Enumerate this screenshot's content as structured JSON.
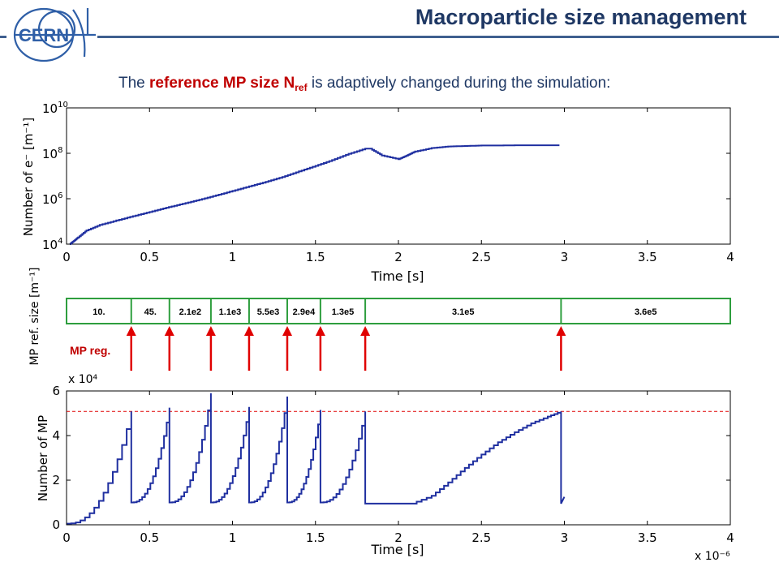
{
  "header": {
    "title": "Macroparticle size management",
    "subtitle_pre": "The ",
    "subtitle_hl": "reference MP size N",
    "subtitle_sub": "ref",
    "subtitle_post": " is adaptively changed during the simulation:",
    "logo_text": "CERN",
    "colors": {
      "title": "#1f3864",
      "rule": "#3f5f8f",
      "highlight": "#c00000"
    }
  },
  "chart_data": [
    {
      "type": "line",
      "xlabel": "Time [s]",
      "ylabel": "Number of e⁻ [m⁻¹]",
      "xlim": [
        0,
        4
      ],
      "ylim": [
        10000,
        10000000000
      ],
      "yscale": "log",
      "x_ticks": [
        "0",
        "0.5",
        "1",
        "1.5",
        "2",
        "2.5",
        "3",
        "3.5",
        "4"
      ],
      "y_ticks": [
        {
          "base": "10",
          "exp": "4",
          "value": 10000
        },
        {
          "base": "10",
          "exp": "6",
          "value": 1000000
        },
        {
          "base": "10",
          "exp": "8",
          "value": 100000000
        },
        {
          "base": "10",
          "exp": "10",
          "value": 10000000000
        }
      ],
      "grid": false,
      "color": "#1f2fa0",
      "points": [
        [
          0.02,
          10000
        ],
        [
          0.04,
          13000
        ],
        [
          0.07,
          20000
        ],
        [
          0.12,
          40000
        ],
        [
          0.2,
          70000
        ],
        [
          0.3,
          110000
        ],
        [
          0.4,
          170000
        ],
        [
          0.5,
          260000
        ],
        [
          0.6,
          400000
        ],
        [
          0.7,
          600000
        ],
        [
          0.8,
          900000
        ],
        [
          0.9,
          1400000
        ],
        [
          1.0,
          2200000
        ],
        [
          1.1,
          3500000
        ],
        [
          1.2,
          5500000
        ],
        [
          1.3,
          9000000
        ],
        [
          1.4,
          16000000
        ],
        [
          1.5,
          28000000
        ],
        [
          1.6,
          50000000
        ],
        [
          1.7,
          95000000
        ],
        [
          1.8,
          160000000
        ],
        [
          1.83,
          160000000
        ],
        [
          1.9,
          80000000
        ],
        [
          2.0,
          55000000
        ],
        [
          2.05,
          80000000
        ],
        [
          2.1,
          120000000
        ],
        [
          2.2,
          170000000
        ],
        [
          2.3,
          200000000
        ],
        [
          2.4,
          210000000
        ],
        [
          2.5,
          220000000
        ],
        [
          2.6,
          220000000
        ],
        [
          2.7,
          225000000
        ],
        [
          2.8,
          225000000
        ],
        [
          2.9,
          225000000
        ],
        [
          2.97,
          225000000
        ]
      ]
    },
    {
      "type": "table",
      "title": "MP ref. size [m⁻¹]",
      "xlim": [
        0,
        4
      ],
      "boundaries": [
        0.39,
        0.62,
        0.87,
        1.1,
        1.33,
        1.53,
        1.8,
        2.98
      ],
      "segments": [
        "10.",
        "45.",
        "2.1e2",
        "1.1e3",
        "5.5e3",
        "2.9e4",
        "1.3e5",
        "3.1e5",
        "3.6e5"
      ],
      "arrow_label": "MP reg.",
      "border_color": "#2e9e3e",
      "arrow_color": "#e00000"
    },
    {
      "type": "line",
      "xlabel": "Time [s]",
      "ylabel": "Number of MP",
      "xlim": [
        0,
        4
      ],
      "ylim": [
        0,
        6
      ],
      "y_multiplier": "x 10⁴",
      "x_multiplier": "x 10⁻⁶",
      "x_ticks": [
        "0",
        "0.5",
        "1",
        "1.5",
        "2",
        "2.5",
        "3",
        "3.5",
        "4"
      ],
      "y_ticks": [
        "0",
        "2",
        "4",
        "6"
      ],
      "grid": false,
      "color": "#1f2fa0",
      "reference_line": {
        "y": 5.08,
        "color": "#e00000",
        "style": "dashed"
      },
      "cycles": [
        {
          "start": 0.0,
          "end": 0.39,
          "y0": 0.05,
          "y1": 5.08
        },
        {
          "start": 0.39,
          "end": 0.62,
          "y0": 1.0,
          "y1": 5.25
        },
        {
          "start": 0.62,
          "end": 0.87,
          "y0": 1.0,
          "y1": 5.9
        },
        {
          "start": 0.87,
          "end": 1.1,
          "y0": 1.0,
          "y1": 5.28
        },
        {
          "start": 1.1,
          "end": 1.33,
          "y0": 1.0,
          "y1": 5.75
        },
        {
          "start": 1.33,
          "end": 1.53,
          "y0": 1.0,
          "y1": 5.15
        },
        {
          "start": 1.53,
          "end": 1.8,
          "y0": 1.0,
          "y1": 5.08
        }
      ],
      "tail": [
        [
          1.8,
          0.95
        ],
        [
          2.08,
          0.95
        ],
        [
          2.2,
          1.3
        ],
        [
          2.3,
          1.9
        ],
        [
          2.4,
          2.55
        ],
        [
          2.5,
          3.15
        ],
        [
          2.6,
          3.7
        ],
        [
          2.7,
          4.15
        ],
        [
          2.8,
          4.55
        ],
        [
          2.9,
          4.85
        ],
        [
          2.98,
          5.08
        ]
      ],
      "tail_end": [
        [
          2.98,
          0.95
        ],
        [
          3.0,
          1.25
        ]
      ]
    }
  ]
}
